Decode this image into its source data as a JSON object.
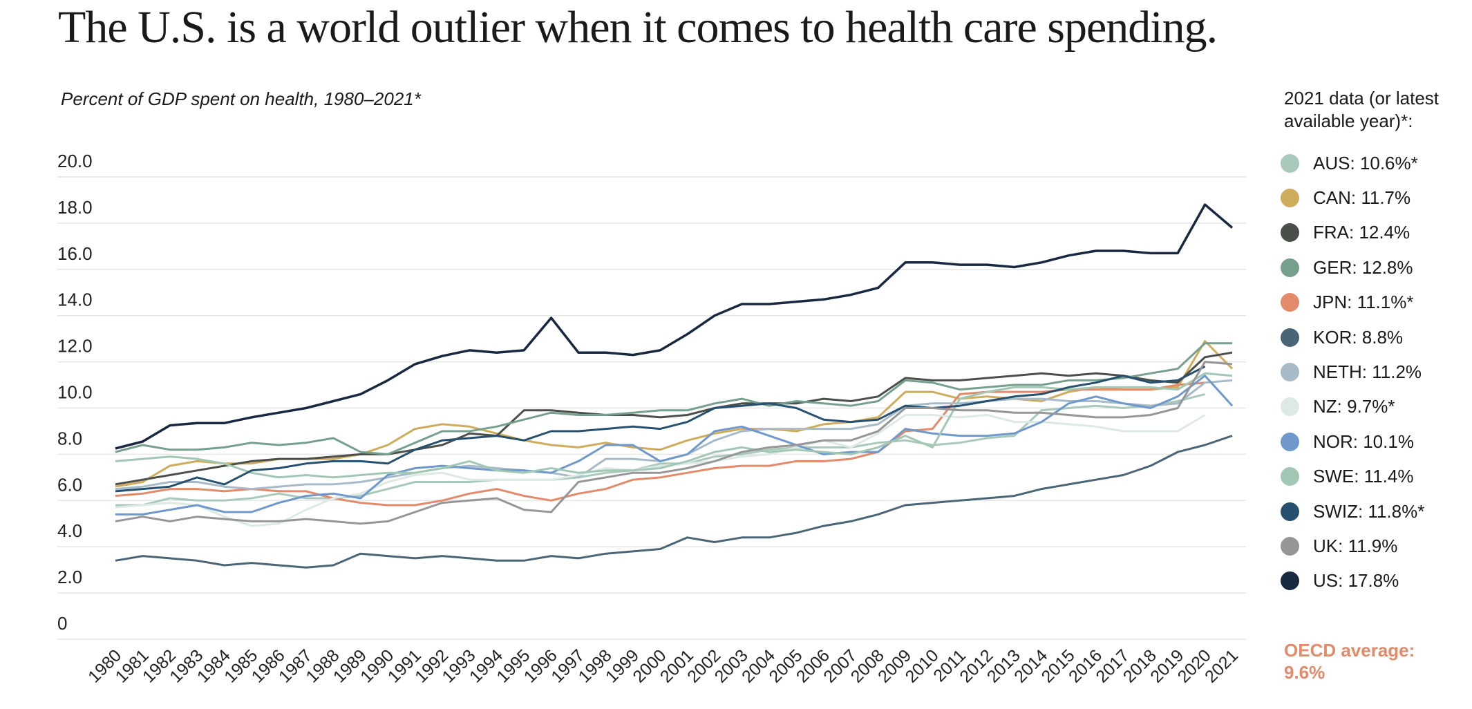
{
  "title": "The U.S. is a world outlier when it comes to health care spending.",
  "chart_data": {
    "type": "line",
    "title": "The U.S. is a world outlier when it comes to health care spending.",
    "subtitle": "Percent of GDP spent on health, 1980–2021*",
    "xlabel": "",
    "ylabel": "",
    "ylim": [
      0,
      20
    ],
    "yticks": [
      "0",
      "2.0",
      "4.0",
      "6.0",
      "8.0",
      "10.0",
      "12.0",
      "14.0",
      "16.0",
      "18.0",
      "20.0"
    ],
    "grid": true,
    "legend_position": "right",
    "legend_title": "2021 data (or latest available year)*:",
    "x": [
      1980,
      1981,
      1982,
      1983,
      1984,
      1985,
      1986,
      1987,
      1988,
      1989,
      1990,
      1991,
      1992,
      1993,
      1994,
      1995,
      1996,
      1997,
      1998,
      1999,
      2000,
      2001,
      2002,
      2003,
      2004,
      2005,
      2006,
      2007,
      2008,
      2009,
      2010,
      2011,
      2012,
      2013,
      2014,
      2015,
      2016,
      2017,
      2018,
      2019,
      2020,
      2021
    ],
    "series": [
      {
        "name": "AUS",
        "legend": "AUS: 10.6%*",
        "color": "#a9c9bb",
        "values": [
          5.8,
          5.8,
          6.1,
          6.0,
          6.0,
          6.1,
          6.3,
          6.1,
          6.1,
          6.2,
          6.5,
          6.8,
          6.8,
          6.8,
          6.9,
          6.9,
          6.9,
          7.0,
          7.2,
          7.3,
          7.6,
          7.6,
          7.9,
          8.0,
          8.2,
          8.3,
          8.3,
          8.3,
          8.5,
          8.6,
          8.4,
          8.5,
          8.7,
          8.8,
          9.9,
          10.0,
          10.1,
          10.0,
          10.1,
          10.3,
          10.6,
          null
        ]
      },
      {
        "name": "CAN",
        "legend": "CAN: 11.7%",
        "color": "#cfab5c",
        "values": [
          6.6,
          6.8,
          7.5,
          7.7,
          7.6,
          7.6,
          7.8,
          7.8,
          7.8,
          8.0,
          8.4,
          9.1,
          9.3,
          9.2,
          8.9,
          8.6,
          8.4,
          8.3,
          8.5,
          8.3,
          8.2,
          8.6,
          8.9,
          9.1,
          9.1,
          9.0,
          9.3,
          9.4,
          9.6,
          10.7,
          10.7,
          10.4,
          10.5,
          10.4,
          10.3,
          10.7,
          10.9,
          10.8,
          10.8,
          10.9,
          12.9,
          11.7
        ]
      },
      {
        "name": "FRA",
        "legend": "FRA: 12.4%",
        "color": "#4a4f4a",
        "values": [
          6.7,
          6.9,
          7.1,
          7.3,
          7.5,
          7.7,
          7.8,
          7.8,
          7.9,
          8.0,
          8.0,
          8.2,
          8.4,
          8.9,
          8.8,
          9.9,
          9.9,
          9.8,
          9.7,
          9.7,
          9.6,
          9.7,
          10.0,
          10.2,
          10.2,
          10.2,
          10.4,
          10.3,
          10.5,
          11.3,
          11.2,
          11.2,
          11.3,
          11.4,
          11.5,
          11.4,
          11.5,
          11.4,
          11.2,
          11.1,
          12.2,
          12.4
        ]
      },
      {
        "name": "GER",
        "legend": "GER: 12.8%",
        "color": "#74a08c",
        "values": [
          8.1,
          8.4,
          8.2,
          8.2,
          8.3,
          8.5,
          8.4,
          8.5,
          8.7,
          8.1,
          8.0,
          8.5,
          9.0,
          9.0,
          9.2,
          9.5,
          9.8,
          9.7,
          9.7,
          9.8,
          9.9,
          9.9,
          10.2,
          10.4,
          10.1,
          10.3,
          10.2,
          10.1,
          10.3,
          11.2,
          11.1,
          10.8,
          10.9,
          11.0,
          11.0,
          11.2,
          11.2,
          11.3,
          11.5,
          11.7,
          12.8,
          12.8
        ]
      },
      {
        "name": "JPN",
        "legend": "JPN: 11.1%*",
        "color": "#e38a6a",
        "values": [
          6.2,
          6.3,
          6.5,
          6.5,
          6.4,
          6.5,
          6.4,
          6.4,
          6.1,
          5.9,
          5.8,
          5.8,
          6.0,
          6.3,
          6.5,
          6.2,
          6.0,
          6.3,
          6.5,
          6.9,
          7.0,
          7.2,
          7.4,
          7.5,
          7.5,
          7.7,
          7.7,
          7.8,
          8.1,
          9.0,
          9.1,
          10.6,
          10.7,
          10.7,
          10.7,
          10.8,
          10.8,
          10.8,
          10.8,
          11.0,
          11.1,
          null
        ]
      },
      {
        "name": "KOR",
        "legend": "KOR: 8.8%",
        "color": "#4a6576",
        "values": [
          3.4,
          3.6,
          3.5,
          3.4,
          3.2,
          3.3,
          3.2,
          3.1,
          3.2,
          3.7,
          3.6,
          3.5,
          3.6,
          3.5,
          3.4,
          3.4,
          3.6,
          3.5,
          3.7,
          3.8,
          3.9,
          4.4,
          4.2,
          4.4,
          4.4,
          4.6,
          4.9,
          5.1,
          5.4,
          5.8,
          5.9,
          6.0,
          6.1,
          6.2,
          6.5,
          6.7,
          6.9,
          7.1,
          7.5,
          8.1,
          8.4,
          8.8
        ]
      },
      {
        "name": "NETH",
        "legend": "NETH: 11.2%",
        "color": "#a7bac8",
        "values": [
          6.5,
          6.6,
          6.8,
          6.8,
          6.6,
          6.5,
          6.6,
          6.7,
          6.7,
          6.8,
          7.0,
          7.2,
          7.4,
          7.5,
          7.4,
          7.3,
          7.2,
          7.0,
          7.8,
          7.8,
          7.7,
          8.0,
          8.6,
          9.0,
          9.1,
          9.1,
          9.1,
          9.1,
          9.3,
          10.1,
          10.2,
          10.2,
          10.3,
          10.4,
          10.4,
          10.3,
          10.3,
          10.2,
          10.1,
          10.2,
          11.1,
          11.2
        ]
      },
      {
        "name": "NZ",
        "legend": "NZ: 9.7%*",
        "color": "#dde9e3",
        "values": [
          5.7,
          5.8,
          5.9,
          5.8,
          5.3,
          4.9,
          5.0,
          5.6,
          6.1,
          6.3,
          6.8,
          7.1,
          7.2,
          6.9,
          6.9,
          6.9,
          6.9,
          7.1,
          7.4,
          7.3,
          7.5,
          7.6,
          7.7,
          7.9,
          8.0,
          8.3,
          8.6,
          8.3,
          8.9,
          9.7,
          9.7,
          9.6,
          9.7,
          9.4,
          9.4,
          9.3,
          9.2,
          9.0,
          9.0,
          9.0,
          9.7,
          null
        ]
      },
      {
        "name": "NOR",
        "legend": "NOR: 10.1%",
        "color": "#6f98cc",
        "values": [
          5.4,
          5.4,
          5.6,
          5.8,
          5.5,
          5.5,
          5.9,
          6.2,
          6.3,
          6.1,
          7.1,
          7.4,
          7.5,
          7.4,
          7.3,
          7.3,
          7.2,
          7.7,
          8.4,
          8.4,
          7.7,
          8.0,
          9.0,
          9.2,
          8.8,
          8.4,
          8.0,
          8.1,
          8.1,
          9.1,
          8.9,
          8.8,
          8.8,
          8.9,
          9.4,
          10.2,
          10.5,
          10.2,
          10.0,
          10.5,
          11.4,
          10.1
        ]
      },
      {
        "name": "SWE",
        "legend": "SWE: 11.4%",
        "color": "#a3c7b5",
        "values": [
          7.7,
          7.8,
          7.9,
          7.8,
          7.6,
          7.2,
          7.0,
          7.1,
          7.0,
          7.1,
          7.2,
          7.2,
          7.4,
          7.7,
          7.3,
          7.2,
          7.4,
          7.2,
          7.3,
          7.3,
          7.4,
          7.7,
          8.1,
          8.3,
          8.1,
          8.2,
          8.1,
          8.0,
          8.3,
          8.8,
          8.3,
          10.4,
          10.7,
          10.9,
          10.9,
          10.8,
          10.9,
          10.9,
          10.9,
          10.8,
          11.5,
          11.4
        ]
      },
      {
        "name": "SWIZ",
        "legend": "SWIZ: 11.8%*",
        "color": "#26506f",
        "values": [
          6.4,
          6.5,
          6.6,
          7.0,
          6.7,
          7.3,
          7.4,
          7.6,
          7.7,
          7.7,
          7.6,
          8.2,
          8.6,
          8.7,
          8.8,
          8.6,
          9.0,
          9.0,
          9.1,
          9.2,
          9.1,
          9.4,
          10.0,
          10.1,
          10.2,
          10.0,
          9.5,
          9.4,
          9.5,
          10.1,
          10.0,
          10.1,
          10.3,
          10.5,
          10.6,
          10.9,
          11.1,
          11.4,
          11.1,
          11.2,
          11.8,
          null
        ]
      },
      {
        "name": "UK",
        "legend": "UK: 11.9%",
        "color": "#969696",
        "values": [
          5.1,
          5.3,
          5.1,
          5.3,
          5.2,
          5.1,
          5.1,
          5.2,
          5.1,
          5.0,
          5.1,
          5.5,
          5.9,
          6.0,
          6.1,
          5.6,
          5.5,
          6.8,
          7.0,
          7.2,
          7.2,
          7.4,
          7.7,
          8.1,
          8.3,
          8.4,
          8.6,
          8.6,
          9.0,
          10.0,
          10.0,
          9.9,
          9.9,
          9.8,
          9.8,
          9.7,
          9.6,
          9.6,
          9.7,
          10.0,
          12.0,
          11.9
        ]
      },
      {
        "name": "US",
        "legend": "US: 17.8%",
        "color": "#182840",
        "values": [
          8.25,
          8.55,
          9.25,
          9.35,
          9.35,
          9.6,
          9.8,
          10.0,
          10.3,
          10.6,
          11.2,
          11.9,
          12.25,
          12.5,
          12.4,
          12.5,
          13.9,
          12.4,
          12.4,
          12.3,
          12.5,
          13.2,
          14.0,
          14.5,
          14.5,
          14.6,
          14.7,
          14.9,
          15.2,
          16.3,
          16.3,
          16.2,
          16.2,
          16.1,
          16.3,
          16.6,
          16.8,
          16.8,
          16.7,
          16.7,
          18.8,
          17.8
        ]
      }
    ],
    "annotation": {
      "line1": "OECD average:",
      "line2": "9.6%",
      "color": "#e38a6a"
    }
  }
}
